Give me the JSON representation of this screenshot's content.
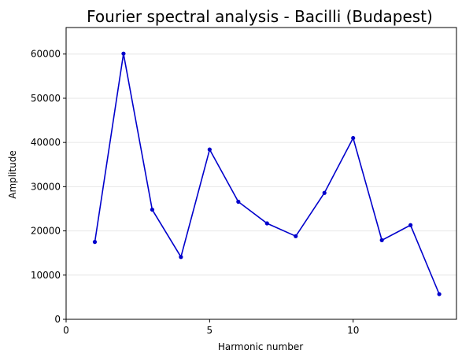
{
  "chart_data": {
    "type": "line",
    "title": "Fourier spectral analysis - Bacilli (Budapest)",
    "xlabel": "Harmonic number",
    "ylabel": "Amplitude",
    "xlim": [
      0,
      13.6
    ],
    "ylim": [
      0,
      66000
    ],
    "xticks": [
      0,
      5,
      10
    ],
    "yticks": [
      0,
      10000,
      20000,
      30000,
      40000,
      50000,
      60000
    ],
    "grid": "horizontal",
    "series": [
      {
        "color": "#0000cc",
        "x": [
          1,
          2,
          3,
          4,
          5,
          6,
          7,
          8,
          9,
          10,
          11,
          12,
          13
        ],
        "y": [
          17500,
          60100,
          24800,
          14100,
          38400,
          26600,
          21700,
          18800,
          28600,
          41000,
          17900,
          21300,
          5700
        ]
      }
    ]
  }
}
